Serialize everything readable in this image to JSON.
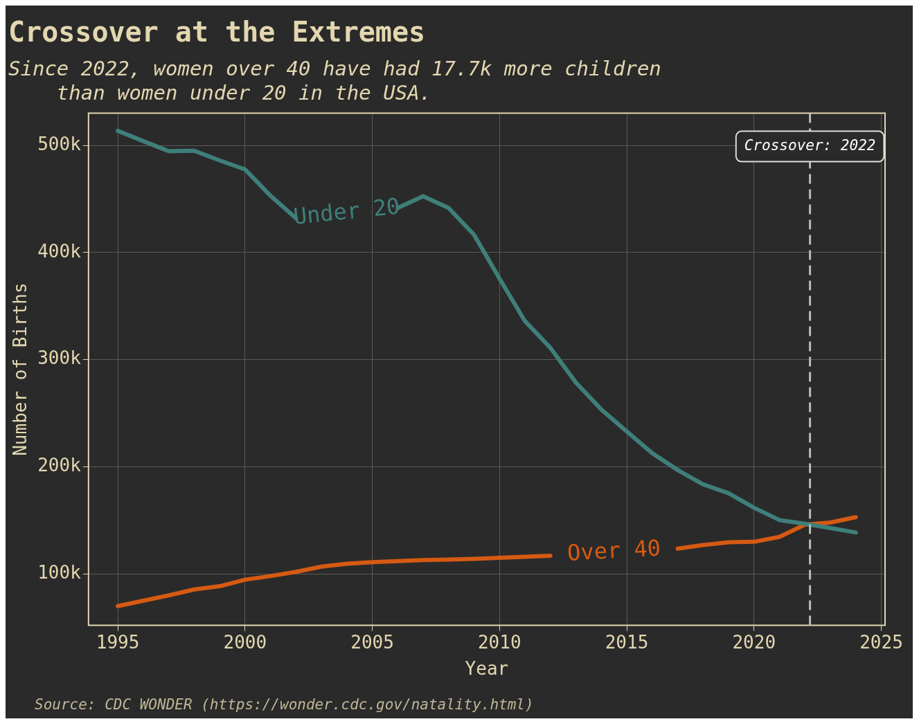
{
  "chart_data": {
    "type": "line",
    "title": "Crossover at the Extremes",
    "subtitle": "Since 2022, women over 40 have had 17.7k more children\n    than women under 20 in the USA.",
    "xlabel": "Year",
    "ylabel": "Number of Births",
    "annotations": [
      "Source: CDC WONDER (https://wonder.cdc.gov/natality.html)"
    ],
    "x": [
      1995,
      1996,
      1997,
      1998,
      1999,
      2000,
      2001,
      2002,
      2003,
      2004,
      2005,
      2006,
      2007,
      2008,
      2009,
      2010,
      2011,
      2012,
      2013,
      2014,
      2015,
      2016,
      2017,
      2018,
      2019,
      2020,
      2021,
      2022,
      2023,
      2024
    ],
    "series": [
      {
        "name": "Under 20",
        "color": "#3f7f7a",
        "values": [
          513600,
          504000,
          494600,
          495000,
          486000,
          477600,
          453000,
          432000,
          null,
          null,
          null,
          441600,
          452500,
          441600,
          416500,
          375700,
          336000,
          311000,
          278600,
          253500,
          233000,
          212700,
          197000,
          183600,
          175400,
          161800,
          150300,
          146800,
          142800,
          138700
        ]
      },
      {
        "name": "Over 40",
        "color": "#d55a12",
        "values": [
          70000,
          75000,
          80000,
          85500,
          88500,
          94600,
          98000,
          102000,
          106800,
          109500,
          111000,
          112000,
          113000,
          113500,
          114000,
          115000,
          116000,
          117000,
          null,
          null,
          null,
          null,
          123600,
          127000,
          129600,
          130000,
          134600,
          146000,
          148000,
          153000
        ]
      }
    ],
    "xlim": [
      1993.85,
      2025.15
    ],
    "ylim": [
      52000,
      530000
    ],
    "xticks": [
      1995,
      2000,
      2005,
      2010,
      2015,
      2020,
      2025
    ],
    "yticks": [
      {
        "value": 100000,
        "label": "100k"
      },
      {
        "value": 200000,
        "label": "200k"
      },
      {
        "value": 300000,
        "label": "300k"
      },
      {
        "value": 400000,
        "label": "400k"
      },
      {
        "value": 500000,
        "label": "500k"
      }
    ],
    "ref_lines": [
      {
        "axis": "x",
        "value": 2022.2,
        "label": "Crossover: 2022",
        "color": "#bbbbbb",
        "line_style": "dashed"
      }
    ],
    "grid": true
  }
}
